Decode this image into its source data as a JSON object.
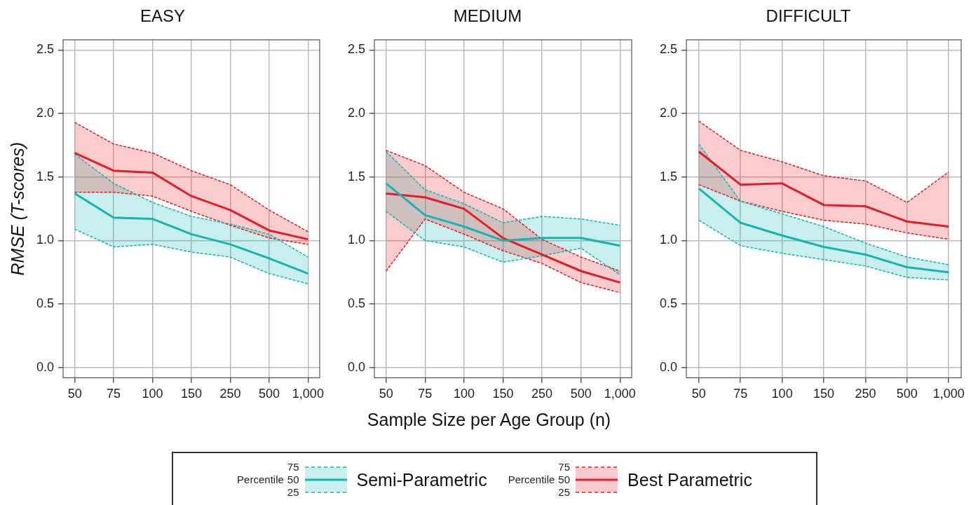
{
  "chart_data": [
    {
      "type": "line",
      "title": "EASY",
      "ylabel": "RMSE (T-scores)",
      "legend": "bottom",
      "legend_title": "Percentile",
      "annotations": [
        "75",
        "50",
        "25"
      ],
      "line_style": "solid",
      "marker": "none",
      "grid": true,
      "categories": [
        "50",
        "75",
        "100",
        "150",
        "250",
        "500",
        "1,000"
      ],
      "ylim": [
        -0.08,
        2.58
      ],
      "yticks": [
        {
          "value": 0,
          "label": "0.0"
        },
        {
          "value": 0.5,
          "label": "0.5"
        },
        {
          "value": 1,
          "label": "1.0"
        },
        {
          "value": 1.5,
          "label": "1.5"
        },
        {
          "value": 2,
          "label": "2.0"
        },
        {
          "value": 2.5,
          "label": "2.5"
        }
      ],
      "series": [
        {
          "name": "Semi-Parametric",
          "color": "#13b5b1",
          "values": [
            1.37,
            1.18,
            1.17,
            1.05,
            0.97,
            0.86,
            0.74
          ],
          "lower": [
            1.09,
            0.95,
            0.97,
            0.91,
            0.87,
            0.74,
            0.66
          ],
          "upper": [
            1.68,
            1.45,
            1.3,
            1.19,
            1.13,
            1.05,
            0.87
          ]
        },
        {
          "color": "#13b5b1",
          "line_style": "dashed",
          "values": [
            1.68,
            1.45,
            1.3,
            1.19,
            1.13,
            1.05,
            0.87
          ]
        },
        {
          "color": "#13b5b1",
          "line_style": "dashed",
          "values": [
            1.09,
            0.95,
            0.97,
            0.91,
            0.87,
            0.74,
            0.66
          ]
        },
        {
          "name": "Best Parametric",
          "color": "#e31e24",
          "values": [
            1.69,
            1.55,
            1.535,
            1.35,
            1.24,
            1.08,
            1.01
          ],
          "lower": [
            1.38,
            1.38,
            1.35,
            1.23,
            1.12,
            1.02,
            0.97
          ],
          "upper": [
            1.93,
            1.76,
            1.69,
            1.55,
            1.44,
            1.24,
            1.07
          ]
        },
        {
          "color": "#e31e24",
          "line_style": "dashed",
          "values": [
            1.93,
            1.76,
            1.69,
            1.55,
            1.44,
            1.24,
            1.07
          ]
        },
        {
          "color": "#e31e24",
          "line_style": "dashed",
          "values": [
            1.38,
            1.38,
            1.35,
            1.23,
            1.12,
            1.02,
            0.97
          ]
        }
      ]
    },
    {
      "type": "line",
      "title": "MEDIUM",
      "xlabel": "Sample Size per Age Group (n)",
      "line_style": "solid",
      "marker": "none",
      "grid": true,
      "categories": [
        "50",
        "75",
        "100",
        "150",
        "250",
        "500",
        "1,000"
      ],
      "ylim": [
        -0.08,
        2.58
      ],
      "yticks": [
        {
          "value": 0,
          "label": "0.0"
        },
        {
          "value": 0.5,
          "label": "0.5"
        },
        {
          "value": 1,
          "label": "1.0"
        },
        {
          "value": 1.5,
          "label": "1.5"
        },
        {
          "value": 2,
          "label": "2.0"
        },
        {
          "value": 2.5,
          "label": "2.5"
        }
      ],
      "series": [
        {
          "color": "#13b5b1",
          "values": [
            1.45,
            1.2,
            1.11,
            1.0,
            1.02,
            1.02,
            0.96
          ],
          "lower": [
            1.23,
            1.0,
            0.95,
            0.83,
            0.88,
            0.94,
            0.73
          ],
          "upper": [
            1.7,
            1.4,
            1.29,
            1.14,
            1.19,
            1.17,
            1.12
          ]
        },
        {
          "color": "#13b5b1",
          "line_style": "dashed",
          "values": [
            1.7,
            1.4,
            1.29,
            1.14,
            1.19,
            1.17,
            1.12
          ]
        },
        {
          "color": "#13b5b1",
          "line_style": "dashed",
          "values": [
            1.23,
            1.0,
            0.95,
            0.83,
            0.88,
            0.94,
            0.73
          ]
        },
        {
          "color": "#e31e24",
          "values": [
            1.37,
            1.34,
            1.25,
            1.02,
            0.89,
            0.76,
            0.67
          ],
          "lower": [
            0.76,
            1.17,
            1.05,
            0.92,
            0.82,
            0.67,
            0.59
          ],
          "upper": [
            1.71,
            1.59,
            1.38,
            1.25,
            1.01,
            0.87,
            0.76
          ]
        },
        {
          "color": "#e31e24",
          "line_style": "dashed",
          "values": [
            1.71,
            1.59,
            1.38,
            1.25,
            1.01,
            0.87,
            0.76
          ]
        },
        {
          "color": "#e31e24",
          "line_style": "dashed",
          "values": [
            0.76,
            1.17,
            1.05,
            0.92,
            0.82,
            0.67,
            0.59
          ]
        }
      ]
    },
    {
      "type": "line",
      "title": "DIFFICULT",
      "line_style": "solid",
      "marker": "none",
      "grid": true,
      "categories": [
        "50",
        "75",
        "100",
        "150",
        "250",
        "500",
        "1,000"
      ],
      "ylim": [
        -0.08,
        2.58
      ],
      "yticks": [
        {
          "value": 0,
          "label": "0.0"
        },
        {
          "value": 0.5,
          "label": "0.5"
        },
        {
          "value": 1,
          "label": "1.0"
        },
        {
          "value": 1.5,
          "label": "1.5"
        },
        {
          "value": 2,
          "label": "2.0"
        },
        {
          "value": 2.5,
          "label": "2.5"
        }
      ],
      "series": [
        {
          "color": "#13b5b1",
          "values": [
            1.41,
            1.14,
            1.04,
            0.95,
            0.89,
            0.79,
            0.75
          ],
          "lower": [
            1.16,
            0.96,
            0.9,
            0.85,
            0.8,
            0.71,
            0.69
          ],
          "upper": [
            1.76,
            1.31,
            1.21,
            1.11,
            0.98,
            0.87,
            0.81
          ]
        },
        {
          "color": "#13b5b1",
          "line_style": "dashed",
          "values": [
            1.76,
            1.31,
            1.21,
            1.11,
            0.98,
            0.87,
            0.81
          ]
        },
        {
          "color": "#13b5b1",
          "line_style": "dashed",
          "values": [
            1.16,
            0.96,
            0.9,
            0.85,
            0.8,
            0.71,
            0.69
          ]
        },
        {
          "color": "#e31e24",
          "values": [
            1.7,
            1.44,
            1.45,
            1.28,
            1.27,
            1.15,
            1.11
          ],
          "lower": [
            1.44,
            1.31,
            1.23,
            1.16,
            1.13,
            1.06,
            1.01
          ],
          "upper": [
            1.94,
            1.71,
            1.62,
            1.51,
            1.47,
            1.3,
            1.54
          ]
        },
        {
          "color": "#e31e24",
          "line_style": "dashed",
          "values": [
            1.94,
            1.71,
            1.62,
            1.51,
            1.47,
            1.3,
            1.54
          ]
        },
        {
          "color": "#e31e24",
          "line_style": "dashed",
          "values": [
            1.44,
            1.31,
            1.23,
            1.16,
            1.13,
            1.06,
            1.01
          ]
        }
      ]
    }
  ]
}
